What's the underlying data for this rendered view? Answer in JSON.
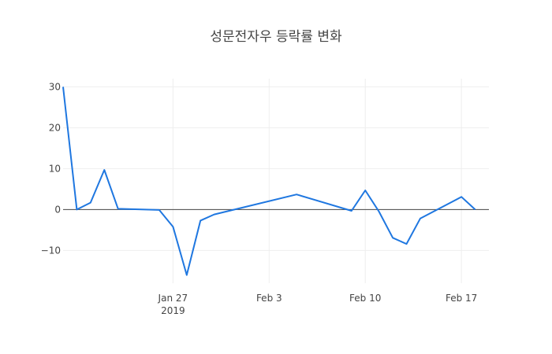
{
  "chart_data": {
    "type": "line",
    "title": "성문전자우 등락률 변화",
    "xlabel": "",
    "ylabel": "",
    "x": [
      "2019-01-19",
      "2019-01-20",
      "2019-01-21",
      "2019-01-22",
      "2019-01-23",
      "2019-01-26",
      "2019-01-27",
      "2019-01-28",
      "2019-01-29",
      "2019-01-30",
      "2019-02-05",
      "2019-02-09",
      "2019-02-10",
      "2019-02-11",
      "2019-02-12",
      "2019-02-13",
      "2019-02-14",
      "2019-02-17",
      "2019-02-18"
    ],
    "series": [
      {
        "values": [
          30.0,
          0.0,
          1.7,
          9.7,
          0.2,
          -0.1,
          -4.2,
          -16.0,
          -2.7,
          -1.2,
          3.7,
          -0.3,
          4.7,
          -0.5,
          -6.9,
          -8.4,
          -2.2,
          3.1,
          0.0
        ],
        "color": "#1f77e0"
      }
    ],
    "xlim": [
      "2019-01-19",
      "2019-02-19"
    ],
    "ylim": [
      -18,
      32
    ],
    "x_ticks": [
      {
        "date": "2019-01-27",
        "label": "Jan 27",
        "sublabel": "2019"
      },
      {
        "date": "2019-02-03",
        "label": "Feb 3",
        "sublabel": ""
      },
      {
        "date": "2019-02-10",
        "label": "Feb 10",
        "sublabel": ""
      },
      {
        "date": "2019-02-17",
        "label": "Feb 17",
        "sublabel": ""
      }
    ],
    "y_ticks": [
      {
        "value": 30,
        "label": "30"
      },
      {
        "value": 20,
        "label": "20"
      },
      {
        "value": 10,
        "label": "10"
      },
      {
        "value": 0,
        "label": "0"
      },
      {
        "value": -10,
        "label": "−10"
      }
    ],
    "grid": true,
    "zero_line": true
  }
}
